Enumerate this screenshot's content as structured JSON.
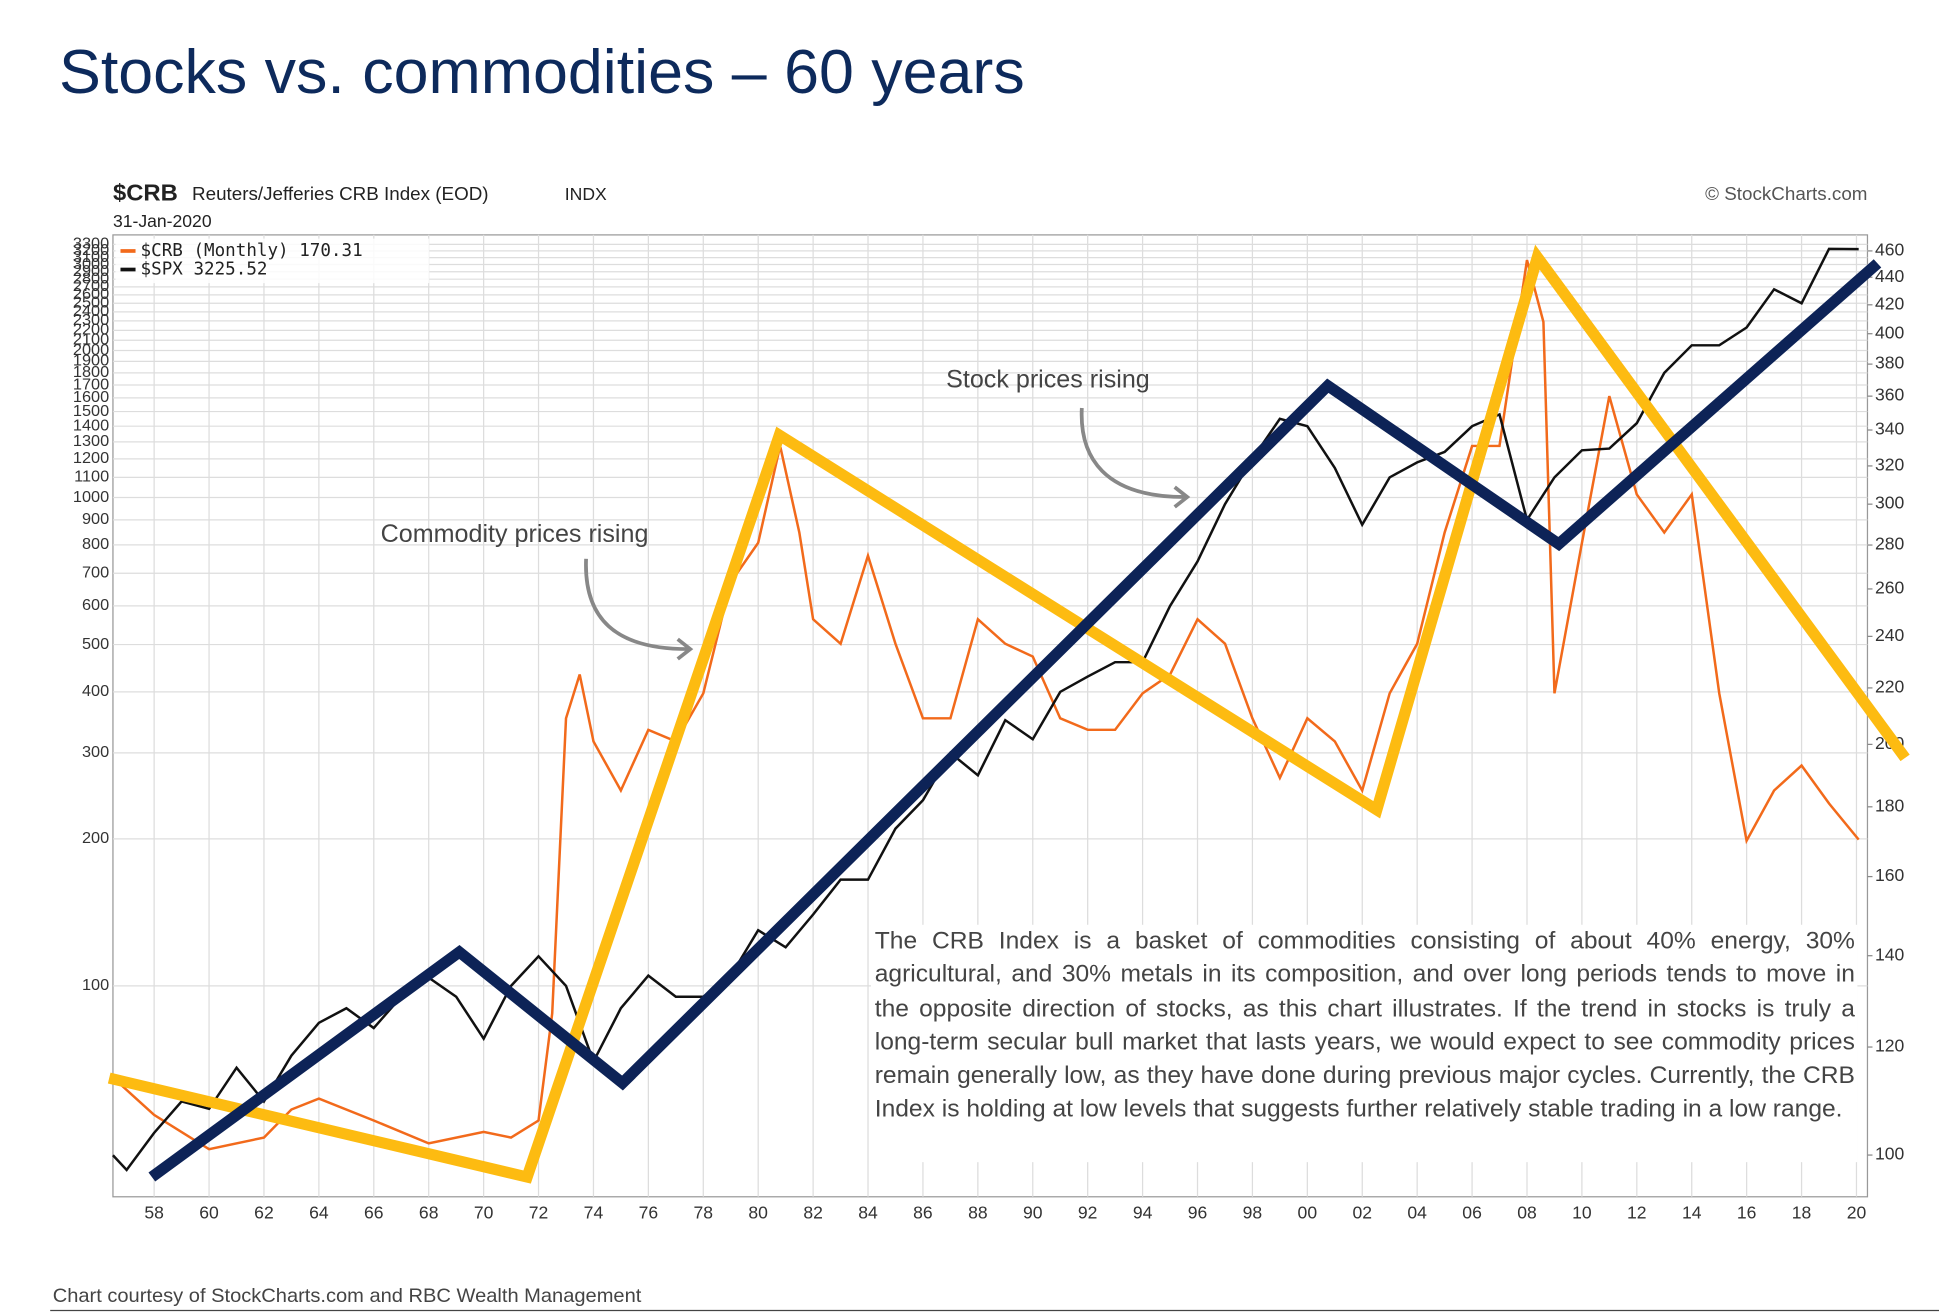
{
  "title": "Stocks vs. commodities – 60 years",
  "footer": "Chart courtesy of StockCharts.com and RBC Wealth Management",
  "chart_data": {
    "type": "line",
    "symbol": "$CRB",
    "heading": "Reuters/Jefferies CRB Index (EOD)",
    "exchange": "INDX",
    "date": "31-Jan-2020",
    "credit": "© StockCharts.com",
    "annotations": [
      "Commodity prices rising",
      "Stock prices rising"
    ],
    "note": "The CRB Index is a basket of commodities consisting of about 40% energy, 30% agricultural, and 30% metals in its composition, and over long periods tends to move in the opposite direction of stocks, as this chart illustrates. If the trend in stocks is truly a long-term secular bull market that lasts years, we would expect to see commodity prices remain generally low, as they have done during previous major cycles. Currently, the CRB Index is holding at low levels that suggests further relatively stable trading in a low range.",
    "log_scale": true,
    "grid": true,
    "xlim": [
      1956.5,
      2020.4
    ],
    "xticks": [
      {
        "value": 1958,
        "label": "58"
      },
      {
        "value": 1960,
        "label": "60"
      },
      {
        "value": 1962,
        "label": "62"
      },
      {
        "value": 1964,
        "label": "64"
      },
      {
        "value": 1966,
        "label": "66"
      },
      {
        "value": 1968,
        "label": "68"
      },
      {
        "value": 1970,
        "label": "70"
      },
      {
        "value": 1972,
        "label": "72"
      },
      {
        "value": 1974,
        "label": "74"
      },
      {
        "value": 1976,
        "label": "76"
      },
      {
        "value": 1978,
        "label": "78"
      },
      {
        "value": 1980,
        "label": "80"
      },
      {
        "value": 1982,
        "label": "82"
      },
      {
        "value": 1984,
        "label": "84"
      },
      {
        "value": 1986,
        "label": "86"
      },
      {
        "value": 1988,
        "label": "88"
      },
      {
        "value": 1990,
        "label": "90"
      },
      {
        "value": 1992,
        "label": "92"
      },
      {
        "value": 1994,
        "label": "94"
      },
      {
        "value": 1996,
        "label": "96"
      },
      {
        "value": 1998,
        "label": "98"
      },
      {
        "value": 2000,
        "label": "00"
      },
      {
        "value": 2002,
        "label": "02"
      },
      {
        "value": 2004,
        "label": "04"
      },
      {
        "value": 2006,
        "label": "06"
      },
      {
        "value": 2008,
        "label": "08"
      },
      {
        "value": 2010,
        "label": "10"
      },
      {
        "value": 2012,
        "label": "12"
      },
      {
        "value": 2014,
        "label": "14"
      },
      {
        "value": 2016,
        "label": "16"
      },
      {
        "value": 2018,
        "label": "18"
      },
      {
        "value": 2020,
        "label": "20"
      }
    ],
    "ylim": [
      37,
      3450
    ],
    "yticks": [
      100,
      200,
      300,
      400,
      500,
      600,
      700,
      800,
      900,
      1000,
      1100,
      1200,
      1300,
      1400,
      1500,
      1600,
      1700,
      1800,
      1900,
      2000,
      2100,
      2200,
      2300,
      2400,
      2500,
      2600,
      2700,
      2800,
      2900,
      3000,
      3100,
      3200,
      3300
    ],
    "y2lim": [
      93.2,
      472.6
    ],
    "y2ticks": [
      100,
      120,
      140,
      160,
      180,
      200,
      220,
      240,
      260,
      280,
      300,
      320,
      340,
      360,
      380,
      400,
      420,
      440,
      460
    ],
    "series": [
      {
        "name": "$CRB (Monthly) 170.31",
        "color": "#f26a1b",
        "axis": "y2",
        "x": [
          1956.5,
          1958,
          1960,
          1962,
          1963,
          1964,
          1966,
          1968,
          1970,
          1971,
          1972,
          1972.5,
          1973,
          1973.5,
          1974,
          1975,
          1976,
          1977,
          1978,
          1979,
          1980,
          1980.8,
          1981.5,
          1982,
          1983,
          1984,
          1985,
          1986,
          1987,
          1988,
          1989,
          1990,
          1991,
          1992,
          1993,
          1994,
          1995,
          1996,
          1997,
          1998,
          1999,
          2000,
          2001,
          2002,
          2003,
          2004,
          2005,
          2006,
          2007,
          2008,
          2008.6,
          2009,
          2010,
          2011,
          2012,
          2013,
          2014,
          2015,
          2016,
          2017,
          2018,
          2019,
          2020.08
        ],
        "values": [
          114,
          107,
          101,
          103,
          108,
          110,
          106,
          102,
          104,
          103,
          106,
          127,
          209,
          225,
          201,
          185,
          205,
          201,
          218,
          263,
          281,
          331,
          286,
          247,
          237,
          275,
          237,
          209,
          209,
          247,
          237,
          232,
          209,
          205,
          205,
          218,
          225,
          247,
          237,
          209,
          189,
          209,
          201,
          185,
          218,
          237,
          286,
          331,
          331,
          453,
          408,
          218,
          281,
          360,
          305,
          286,
          305,
          218,
          170,
          185,
          193,
          181,
          170.31
        ]
      },
      {
        "name": "$SPX 3225.52",
        "color": "#111111",
        "axis": "y",
        "x": [
          1956.5,
          1957,
          1958,
          1959,
          1960,
          1961,
          1962,
          1963,
          1964,
          1965,
          1966,
          1967,
          1968,
          1969,
          1970,
          1971,
          1972,
          1973,
          1974,
          1975,
          1976,
          1977,
          1978,
          1979,
          1980,
          1981,
          1982,
          1983,
          1984,
          1985,
          1986,
          1987,
          1988,
          1989,
          1990,
          1991,
          1992,
          1993,
          1994,
          1995,
          1996,
          1997,
          1998,
          1999,
          2000,
          2001,
          2002,
          2003,
          2004,
          2005,
          2006,
          2007,
          2008,
          2009,
          2010,
          2011,
          2012,
          2013,
          2014,
          2015,
          2016,
          2017,
          2018,
          2019,
          2020.08
        ],
        "values": [
          45,
          42,
          50,
          58,
          56,
          68,
          58,
          72,
          84,
          90,
          82,
          95,
          104,
          95,
          78,
          100,
          115,
          100,
          70,
          90,
          105,
          95,
          95,
          105,
          130,
          120,
          140,
          165,
          165,
          210,
          240,
          300,
          270,
          350,
          320,
          400,
          430,
          460,
          460,
          600,
          740,
          970,
          1200,
          1450,
          1400,
          1150,
          880,
          1100,
          1180,
          1240,
          1400,
          1480,
          900,
          1100,
          1250,
          1260,
          1420,
          1800,
          2050,
          2050,
          2230,
          2670,
          2500,
          3230,
          3225.52
        ]
      }
    ]
  }
}
